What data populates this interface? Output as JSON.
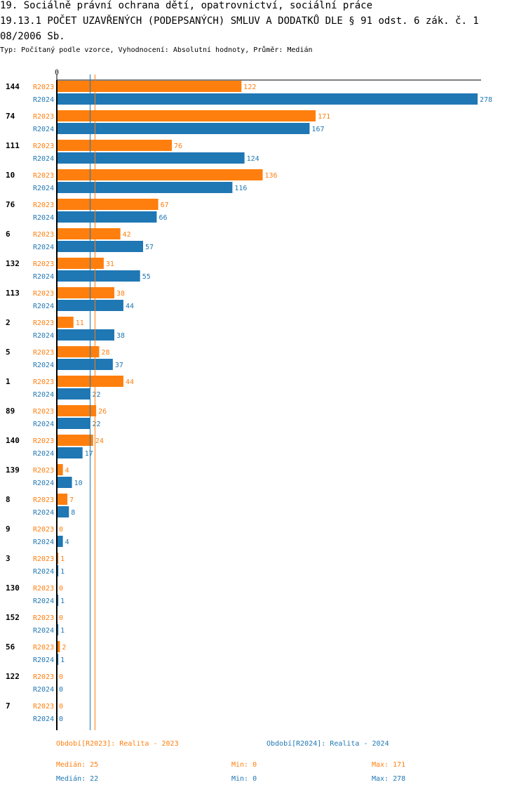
{
  "header": {
    "title_line1": "19. Sociálně právní ochrana dětí, opatrovnictví, sociální práce",
    "title_line2": "19.13.1 POČET UZAVŘENÝCH (PODEPSANÝCH) SMLUV A DODATKŮ DLE § 91 odst. 6 zák. č. 1",
    "title_line3": "08/2006 Sb.",
    "subtitle": "Typ: Počítaný podle vzorce, Vyhodnocení: Absolutní hodnoty, Průměr: Medián"
  },
  "colors": {
    "r2023": "#ff7f0e",
    "r2024": "#1f77b4"
  },
  "chart_data": {
    "type": "bar",
    "orientation": "horizontal",
    "xlim": [
      0,
      278
    ],
    "x_tick_label": "0",
    "categories": [
      "144",
      "74",
      "111",
      "10",
      "76",
      "6",
      "132",
      "113",
      "2",
      "5",
      "1",
      "89",
      "140",
      "139",
      "8",
      "9",
      "3",
      "130",
      "152",
      "56",
      "122",
      "7"
    ],
    "series": [
      {
        "name": "R2023",
        "values": [
          122,
          171,
          76,
          136,
          67,
          42,
          31,
          38,
          11,
          28,
          44,
          26,
          24,
          4,
          7,
          0,
          1,
          0,
          0,
          2,
          0,
          0
        ]
      },
      {
        "name": "R2024",
        "values": [
          278,
          167,
          124,
          116,
          66,
          57,
          55,
          44,
          38,
          37,
          22,
          22,
          17,
          10,
          8,
          4,
          1,
          1,
          1,
          1,
          0,
          0
        ]
      }
    ],
    "medians": {
      "R2023": 25,
      "R2024": 22
    }
  },
  "footer": {
    "legend_2023": "Období[R2023]: Realita - 2023",
    "legend_2024": "Období[R2024]: Realita - 2024",
    "median_2023": "Medián: 25",
    "min_2023": "Min: 0",
    "max_2023": "Max: 171",
    "median_2024": "Medián: 22",
    "min_2024": "Min: 0",
    "max_2024": "Max: 278"
  }
}
